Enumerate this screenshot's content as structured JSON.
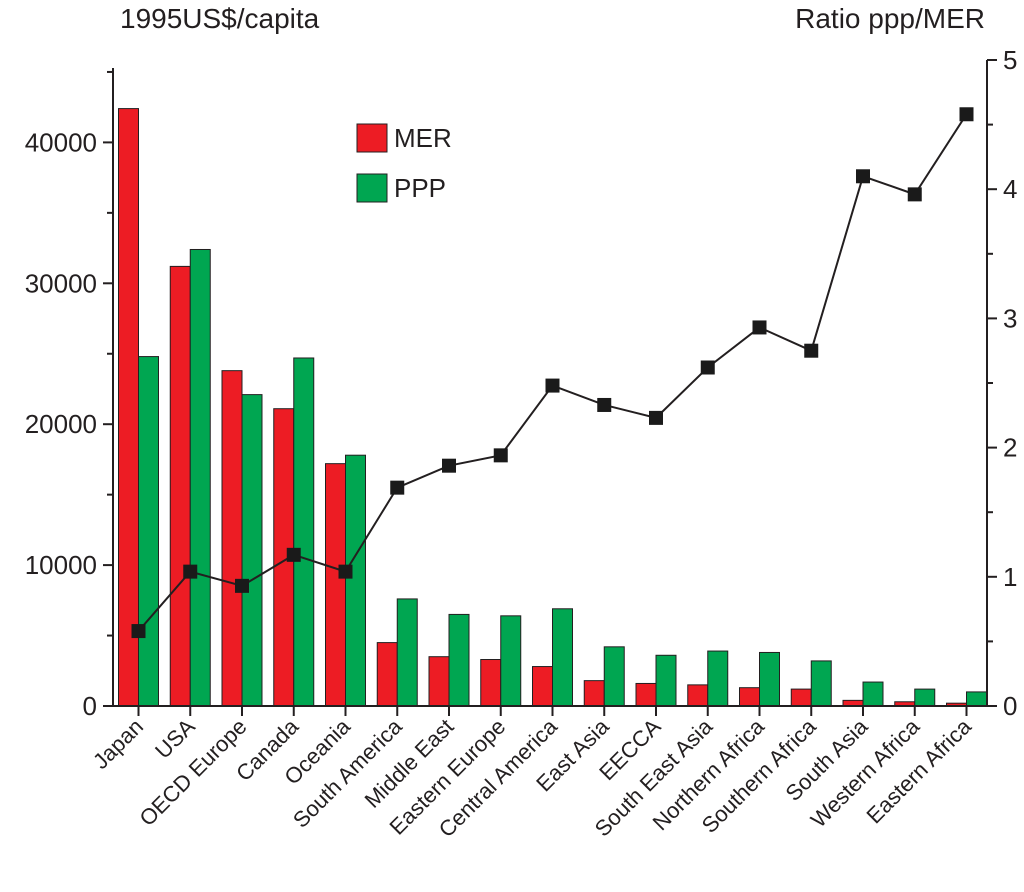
{
  "chart_data": {
    "type": "bar",
    "left_axis_title": "1995US$/capita",
    "right_axis_title": "Ratio ppp/MER",
    "categories": [
      "Japan",
      "USA",
      "OECD Europe",
      "Canada",
      "Oceania",
      "South America",
      "Middle East",
      "Eastern Europe",
      "Central America",
      "East Asia",
      "EECCA",
      "South East Asia",
      "Northern Africa",
      "Southern Africa",
      "South Asia",
      "Western Africa",
      "Eastern Africa"
    ],
    "series": [
      {
        "name": "MER",
        "axis": "left",
        "color": "#ed1c24",
        "values": [
          42400,
          31200,
          23800,
          21100,
          17200,
          4500,
          3500,
          3300,
          2800,
          1800,
          1600,
          1500,
          1300,
          1200,
          400,
          300,
          200
        ]
      },
      {
        "name": "PPP",
        "axis": "left",
        "color": "#00a651",
        "values": [
          24800,
          32400,
          22100,
          24700,
          17800,
          7600,
          6500,
          6400,
          6900,
          4200,
          3600,
          3900,
          3800,
          3200,
          1700,
          1200,
          1000
        ]
      },
      {
        "name": "",
        "type": "line",
        "axis": "right",
        "color": "#231f20",
        "values": [
          0.58,
          1.04,
          0.93,
          1.17,
          1.04,
          1.69,
          1.86,
          1.94,
          2.48,
          2.33,
          2.23,
          2.62,
          2.93,
          2.75,
          4.1,
          3.96,
          4.58
        ]
      }
    ],
    "left_axis": {
      "ylim": [
        0,
        45000
      ],
      "ticks": [
        0,
        10000,
        20000,
        30000,
        40000
      ],
      "tick_labels": [
        "0",
        "10000",
        "20000",
        "30000",
        "40000"
      ]
    },
    "right_axis": {
      "ylim": [
        0,
        5
      ],
      "ticks": [
        0,
        1,
        2,
        3,
        4,
        5
      ],
      "tick_labels": [
        "0",
        "1",
        "2",
        "3",
        "4",
        "5"
      ]
    },
    "legend": {
      "placement": "top-center",
      "entries": [
        "MER",
        "PPP"
      ]
    },
    "grid": false
  }
}
